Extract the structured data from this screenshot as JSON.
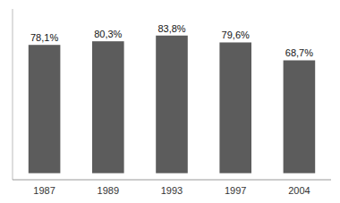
{
  "chart_data": {
    "type": "bar",
    "categories": [
      "1987",
      "1989",
      "1993",
      "1997",
      "2004"
    ],
    "values": [
      78.1,
      80.3,
      83.8,
      79.6,
      68.7
    ],
    "value_labels": [
      "78,1%",
      "80,3%",
      "83,8%",
      "79,6%",
      "68,7%"
    ],
    "data_labels": true,
    "color": "#5c5c5c",
    "ylim": [
      -4,
      100
    ],
    "yticks": [],
    "tick_labels": "x"
  }
}
